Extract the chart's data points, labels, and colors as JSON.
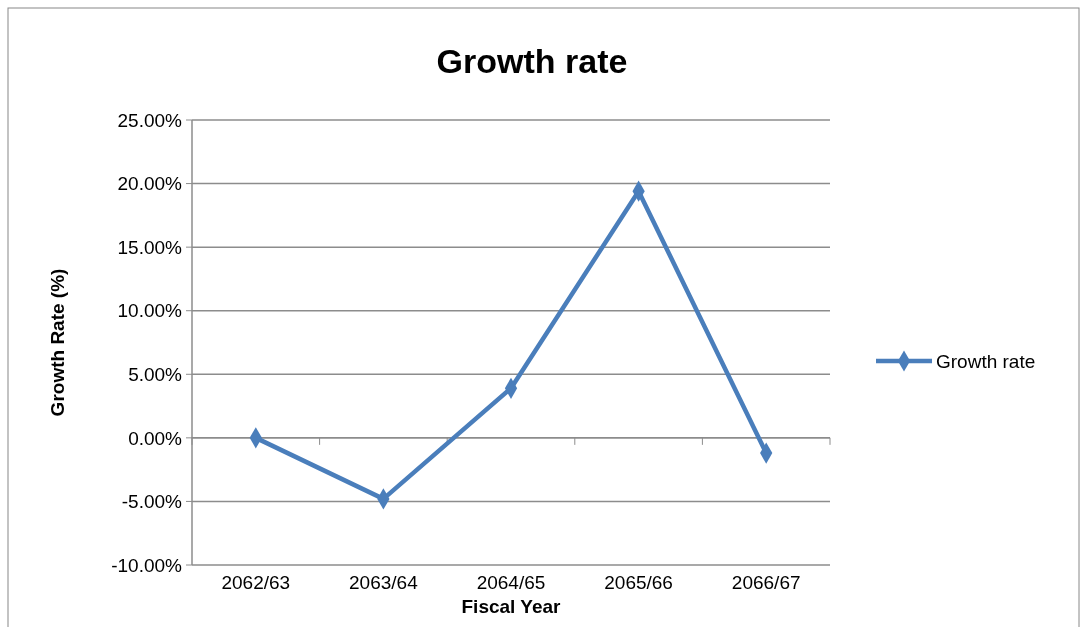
{
  "chart_data": {
    "type": "line",
    "title": "Growth rate",
    "xlabel": "Fiscal Year",
    "ylabel": "Growth Rate (%)",
    "categories": [
      "2062/63",
      "2063/64",
      "2064/65",
      "2065/66",
      "2066/67"
    ],
    "series": [
      {
        "name": "Growth rate",
        "color": "#4a7ebb",
        "values": [
          0,
          -4.8,
          3.9,
          19.4,
          -1.2
        ]
      }
    ],
    "ylim": [
      -10,
      25
    ],
    "yticks": [
      {
        "value": -10,
        "label": "-10.00%"
      },
      {
        "value": -5,
        "label": "-5.00%"
      },
      {
        "value": 0,
        "label": "0.00%"
      },
      {
        "value": 5,
        "label": "5.00%"
      },
      {
        "value": 10,
        "label": "10.00%"
      },
      {
        "value": 15,
        "label": "15.00%"
      },
      {
        "value": 20,
        "label": "20.00%"
      },
      {
        "value": 25,
        "label": "25.00%"
      }
    ],
    "grid": "y",
    "legend": "right",
    "marker": "diamond",
    "line_style": "solid"
  }
}
